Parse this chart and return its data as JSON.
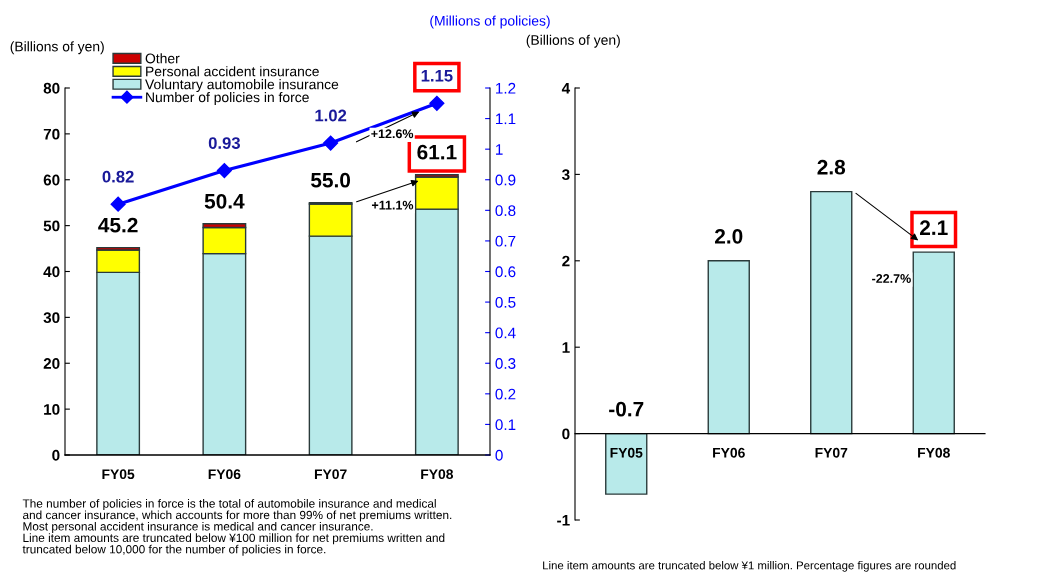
{
  "chart_data": [
    {
      "type": "bar",
      "stacked": true,
      "ylabel": "(Billions of yen)",
      "y2label": "(Millions of policies)",
      "categories": [
        "FY05",
        "FY06",
        "FY07",
        "FY08"
      ],
      "series": [
        {
          "name": "Voluntary automobile insurance",
          "color": "#b8eaea",
          "values": [
            39.8,
            43.9,
            47.7,
            53.6
          ]
        },
        {
          "name": "Personal accident insurance",
          "color": "#ffff00",
          "values": [
            4.9,
            5.7,
            7.0,
            7.0
          ]
        },
        {
          "name": "Other",
          "color": "#cc0000",
          "values": [
            0.5,
            0.8,
            0.3,
            0.5
          ]
        },
        {
          "name": "Number of policies in force",
          "type": "line",
          "axis": "y2",
          "color": "#0000ff",
          "marker": "diamond",
          "values": [
            0.82,
            0.93,
            1.02,
            1.15
          ],
          "value_labels": [
            "0.82",
            "0.93",
            "1.02",
            "1.15"
          ]
        }
      ],
      "totals": [
        "45.2",
        "50.4",
        "55.0",
        "61.1"
      ],
      "ylim": [
        0,
        80
      ],
      "yticks": [
        0,
        10,
        20,
        30,
        40,
        50,
        60,
        70,
        80
      ],
      "y2lim": [
        0,
        1.2
      ],
      "y2ticks": [
        0,
        0.1,
        0.2,
        0.3,
        0.4,
        0.5,
        0.6,
        0.7,
        0.8,
        0.9,
        1,
        1.1,
        1.2
      ],
      "grid": false,
      "legend": "top left",
      "annotations": [
        "+12.6%",
        {
          "text": "+11.1%",
          "x": "FY08",
          "y": 61.1
        },
        "The number of policies in force is the total of automobile insurance and medical\nand cancer insurance, which accounts for more than 99% of net premiums written.\nMost personal accident insurance is medical and cancer insurance.\nLine item amounts are truncated below ¥100 million for net premiums written and\ntruncated below 10,000 for the number of policies in force."
      ]
    },
    {
      "type": "bar",
      "ylabel": "(Billions of yen)",
      "categories": [
        "FY05",
        "FY06",
        "FY07",
        "FY08"
      ],
      "series": [
        {
          "color": "#b8eaea",
          "values": [
            -0.7,
            2.0,
            2.8,
            2.1
          ],
          "value_labels": [
            "-0.7",
            "2.0",
            "2.8",
            "2.1"
          ]
        }
      ],
      "ylim": [
        -1,
        4
      ],
      "yticks": [
        -1,
        0,
        1,
        2,
        3,
        4
      ],
      "grid": false,
      "annotations": [
        {
          "text": "-22.7%",
          "x": "FY08",
          "y": 2.1
        },
        "Line item amounts are truncated below ¥1 million. Percentage figures are rounded"
      ]
    }
  ]
}
